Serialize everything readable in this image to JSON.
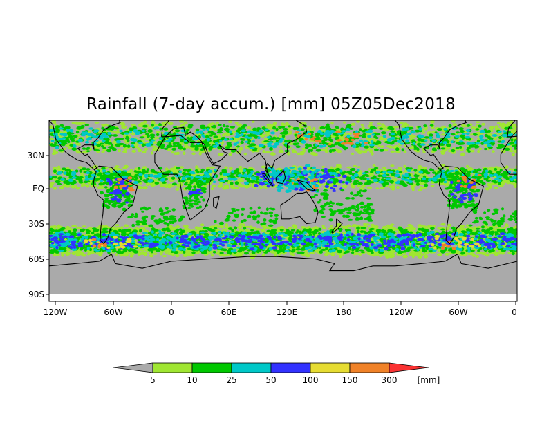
{
  "title": "Rainfall (7-day accum.) [mm] 05Z05Dec2018",
  "colors": {
    "background": "#aaaaaa",
    "coast": "#000000",
    "bins": [
      "#a0e632",
      "#00c800",
      "#00c8c8",
      "#3232ff",
      "#e6dc32",
      "#f08228",
      "#fa3232"
    ]
  },
  "map": {
    "y_ticks": [
      "30N",
      "EQ",
      "30S",
      "60S",
      "90S"
    ],
    "x_ticks": [
      "120W",
      "60W",
      "0",
      "60E",
      "120E",
      "180",
      "120W",
      "60W",
      "0"
    ]
  },
  "colorbar": {
    "labels": [
      "5",
      "10",
      "25",
      "50",
      "100",
      "150",
      "300"
    ],
    "unit": "[mm]"
  }
}
